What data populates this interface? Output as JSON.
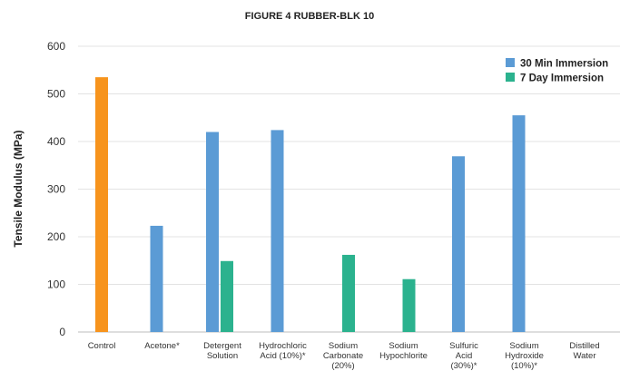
{
  "chart_data": {
    "type": "bar",
    "title": "FIGURE 4 RUBBER-BLK 10",
    "ylabel": "Tensile Modulus (MPa)",
    "xlabel": "",
    "ylim": [
      0,
      600
    ],
    "yticks": [
      0,
      100,
      200,
      300,
      400,
      500,
      600
    ],
    "grid": true,
    "legend_position": "top-right",
    "categories": [
      [
        "Control"
      ],
      [
        "Acetone*"
      ],
      [
        "Detergent",
        "Solution"
      ],
      [
        "Hydrochloric",
        "Acid (10%)*"
      ],
      [
        "Sodium",
        "Carbonate",
        "(20%)"
      ],
      [
        "Sodium",
        "Hypochlorite"
      ],
      [
        "Sulfuric",
        "Acid",
        "(30%)*"
      ],
      [
        "Sodium",
        "Hydroxide",
        "(10%)*"
      ],
      [
        "Distilled",
        "Water"
      ]
    ],
    "control": {
      "value": 535,
      "color": "#F7941D"
    },
    "series": [
      {
        "name": "30 Min Immersion",
        "color": "#5B9BD5",
        "values": [
          null,
          223,
          420,
          424,
          null,
          null,
          369,
          455,
          null
        ]
      },
      {
        "name": "7 Day Immersion",
        "color": "#2BB28E",
        "values": [
          null,
          null,
          149,
          null,
          162,
          111,
          null,
          null,
          null
        ]
      }
    ]
  }
}
